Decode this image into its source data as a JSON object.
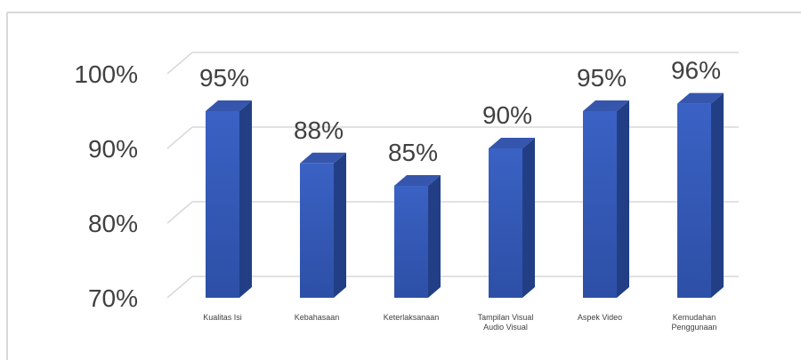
{
  "chart_data": {
    "type": "bar",
    "title": "",
    "xlabel": "",
    "ylabel": "",
    "categories": [
      [
        "Kualitas Isi"
      ],
      [
        "Kebahasaan"
      ],
      [
        "Keterlaksanaan"
      ],
      [
        "Tampilan Visual",
        "Audio Visual"
      ],
      [
        "Aspek Video"
      ],
      [
        "Kemudahan",
        "Penggunaan"
      ]
    ],
    "values": [
      95,
      88,
      85,
      90,
      95,
      96
    ],
    "data_labels": [
      "95%",
      "88%",
      "85%",
      "90%",
      "95%",
      "96%"
    ],
    "y_ticks": [
      {
        "value": 70,
        "label": "70%"
      },
      {
        "value": 80,
        "label": "80%"
      },
      {
        "value": 90,
        "label": "90%"
      },
      {
        "value": 100,
        "label": "100%"
      }
    ],
    "ylim": [
      70,
      100
    ],
    "grid": true,
    "style": "3d-column",
    "colors": {
      "bar_front": "#3a62c4",
      "bar_front_dark": "#2d4fa6",
      "bar_side": "#223f86",
      "bar_top": "#3656ad",
      "gridline": "#d9d9d9",
      "label_text": "#404040",
      "frame_border": "#d9d9d9"
    }
  }
}
